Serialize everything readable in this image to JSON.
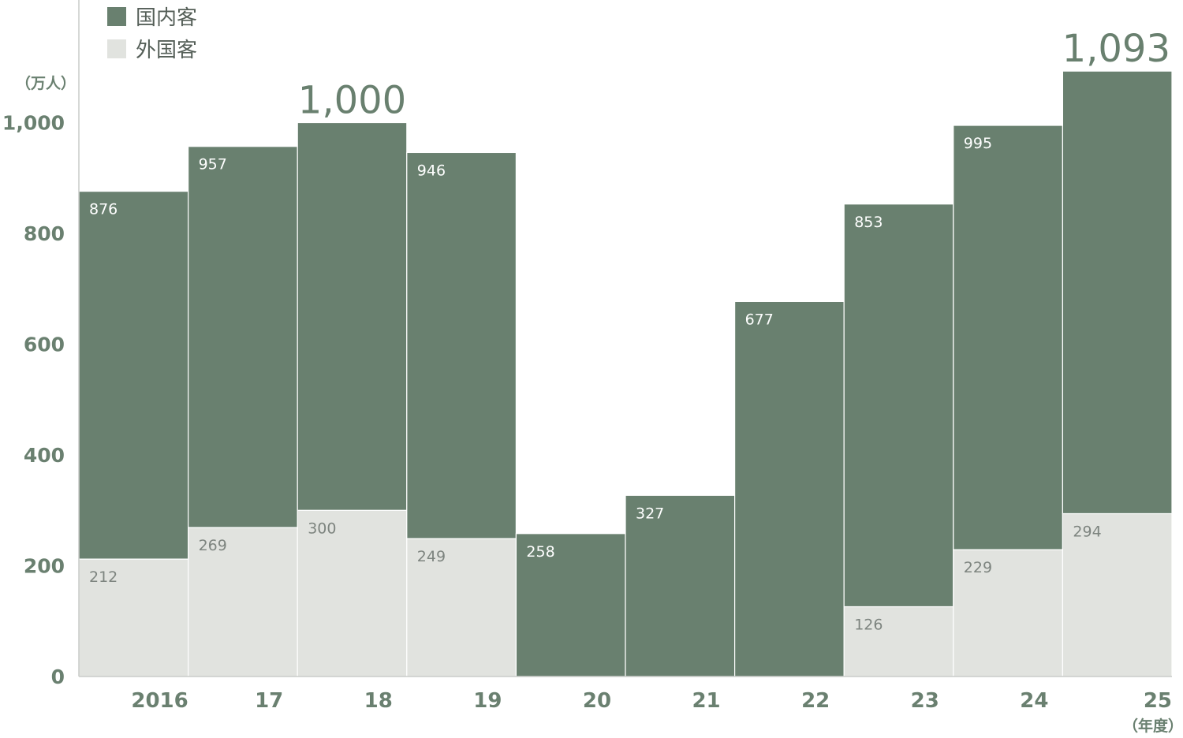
{
  "legend": {
    "domestic": "国内客",
    "foreign": "外国客"
  },
  "units": {
    "y": "（万人）",
    "x": "（年度）"
  },
  "colors": {
    "domestic": "#69806f",
    "foreign": "#e1e3df",
    "axis_text": "#6a8070",
    "label_on_dark": "#ffffff",
    "label_on_light": "#7d847f"
  },
  "chart_data": {
    "type": "bar",
    "stacked": true,
    "categories": [
      "2016",
      "17",
      "18",
      "19",
      "20",
      "21",
      "22",
      "23",
      "24",
      "25"
    ],
    "series": [
      {
        "name": "外国客",
        "values": [
          212,
          269,
          300,
          249,
          0,
          0,
          0,
          126,
          229,
          294
        ]
      },
      {
        "name": "国内客",
        "values": [
          664,
          688,
          700,
          697,
          258,
          327,
          677,
          727,
          766,
          799
        ]
      }
    ],
    "domestic_labels": [
      "876",
      "957",
      "",
      "946",
      "258",
      "327",
      "677",
      "853",
      "995",
      ""
    ],
    "foreign_labels": [
      "212",
      "269",
      "300",
      "249",
      "",
      "",
      "",
      "126",
      "229",
      "294"
    ],
    "highlight_totals": [
      {
        "index": 2,
        "label": "1,000"
      },
      {
        "index": 9,
        "label": "1,093"
      }
    ],
    "totals": [
      876,
      957,
      1000,
      946,
      258,
      327,
      677,
      853,
      995,
      1093
    ],
    "y_ticks": [
      0,
      200,
      400,
      600,
      800,
      1000
    ],
    "y_tick_labels": [
      "0",
      "200",
      "400",
      "600",
      "800",
      "1,000"
    ],
    "ylim": [
      0,
      1093
    ],
    "grid": false,
    "legend_position": "top-left"
  }
}
